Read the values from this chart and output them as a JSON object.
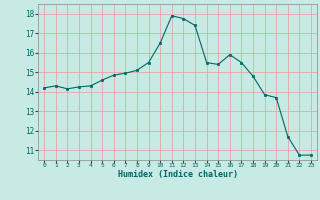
{
  "x": [
    0,
    1,
    2,
    3,
    4,
    5,
    6,
    7,
    8,
    9,
    10,
    11,
    12,
    13,
    14,
    15,
    16,
    17,
    18,
    19,
    20,
    21,
    22,
    23
  ],
  "y": [
    14.2,
    14.3,
    14.15,
    14.25,
    14.3,
    14.6,
    14.85,
    14.95,
    15.1,
    15.5,
    16.5,
    17.9,
    17.75,
    17.4,
    15.5,
    15.4,
    15.9,
    15.5,
    14.8,
    13.85,
    13.7,
    11.7,
    10.75,
    10.75
  ],
  "xlabel": "Humidex (Indice chaleur)",
  "ylim": [
    10.5,
    18.5
  ],
  "xlim": [
    -0.5,
    23.5
  ],
  "bg_color": "#c8eae4",
  "line_color": "#006666",
  "grid_color": "#ee9999",
  "yticks": [
    11,
    12,
    13,
    14,
    15,
    16,
    17,
    18
  ],
  "xticks": [
    0,
    1,
    2,
    3,
    4,
    5,
    6,
    7,
    8,
    9,
    10,
    11,
    12,
    13,
    14,
    15,
    16,
    17,
    18,
    19,
    20,
    21,
    22,
    23
  ]
}
